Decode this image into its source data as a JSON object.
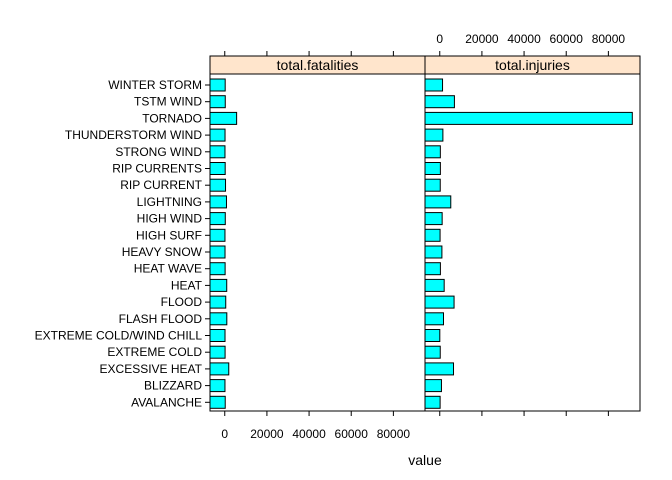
{
  "chart_data": {
    "type": "bar",
    "orientation": "horizontal",
    "xlabel": "value",
    "xlim": [
      -7000,
      95000
    ],
    "x_ticks": [
      0,
      20000,
      40000,
      60000,
      80000
    ],
    "x_tick_labels": [
      "0",
      "20000",
      "40000",
      "60000",
      "80000"
    ],
    "colors": {
      "bar_fill": "#00ffff",
      "strip_fill": "#ffe5cc",
      "border": "#000000"
    },
    "categories": [
      "WINTER STORM",
      "TSTM WIND",
      "TORNADO",
      "THUNDERSTORM WIND",
      "STRONG WIND",
      "RIP CURRENTS",
      "RIP CURRENT",
      "LIGHTNING",
      "HIGH WIND",
      "HIGH SURF",
      "HEAVY SNOW",
      "HEAT WAVE",
      "HEAT",
      "FLOOD",
      "FLASH FLOOD",
      "EXTREME COLD/WIND CHILL",
      "EXTREME COLD",
      "EXCESSIVE HEAT",
      "BLIZZARD",
      "AVALANCHE"
    ],
    "panels": [
      {
        "name": "total.fatalities",
        "values": [
          206,
          241,
          5633,
          133,
          103,
          204,
          368,
          816,
          248,
          101,
          127,
          172,
          937,
          470,
          978,
          125,
          160,
          1903,
          101,
          224
        ]
      },
      {
        "name": "total.injuries",
        "values": [
          1321,
          6957,
          91346,
          1488,
          280,
          297,
          232,
          5230,
          1137,
          152,
          1021,
          309,
          2100,
          6789,
          1777,
          24,
          231,
          6525,
          805,
          170
        ]
      }
    ]
  }
}
